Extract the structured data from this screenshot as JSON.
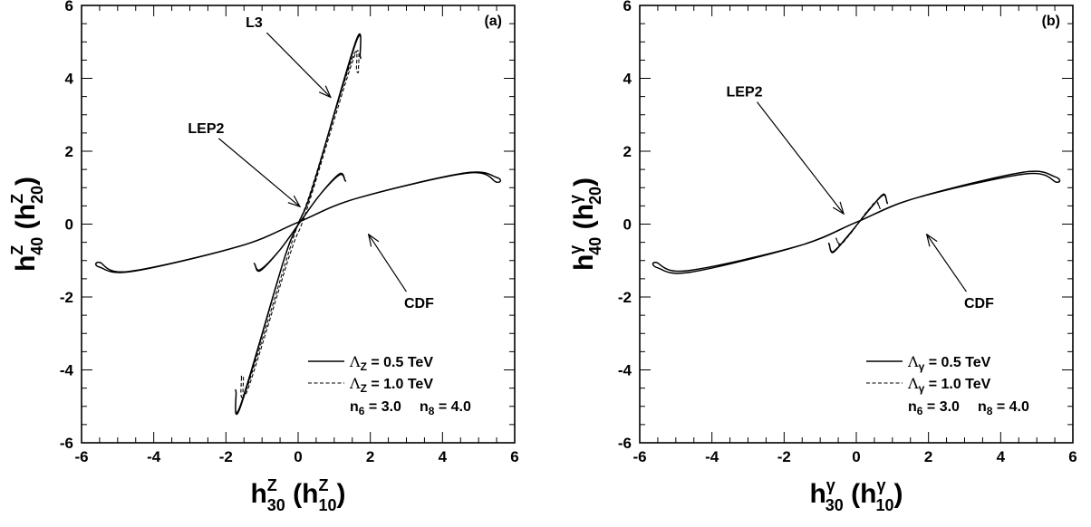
{
  "chart_data": [
    {
      "type": "line",
      "panel_label": "(a)",
      "xlabel": {
        "main": "h",
        "sup": "Z",
        "sub": "30",
        "paren_open": " (h",
        "paren_sup": "Z",
        "paren_sub": "10",
        "paren_close": ")"
      },
      "ylabel": {
        "main": "h",
        "sup": "Z",
        "sub": "40",
        "paren_open": " (h",
        "paren_sup": "Z",
        "paren_sub": "20",
        "paren_close": ")"
      },
      "xlim": [
        -6,
        6
      ],
      "ylim": [
        -6,
        6
      ],
      "xticks": [
        -6,
        -4,
        -2,
        0,
        2,
        4,
        6
      ],
      "yticks": [
        -6,
        -4,
        -2,
        0,
        2,
        4,
        6
      ],
      "xtick_labels": [
        "-6",
        "-4",
        "-2",
        "0",
        "2",
        "4",
        "6"
      ],
      "ytick_labels": [
        "-6",
        "-4",
        "-2",
        "0",
        "2",
        "4",
        "6"
      ],
      "series": [
        {
          "name": "CDF",
          "style": "solid",
          "cx": 0,
          "cy": 0.05,
          "x": [
            -5.5,
            -4.6,
            -1.6,
            0,
            1.6,
            4.7,
            5.5
          ],
          "y": [
            -1.18,
            -1.3,
            -0.6,
            0.05,
            0.7,
            1.4,
            1.15
          ]
        },
        {
          "name": "L3",
          "style": "solid",
          "cx": 0,
          "cy": 0,
          "x": [
            -1.72,
            -1.6,
            -0.4,
            0,
            0.4,
            1.6,
            1.72
          ],
          "y": [
            -4.6,
            -4.98,
            -1.0,
            0,
            1.0,
            5.02,
            4.6
          ]
        },
        {
          "name": "L3",
          "style": "dashed",
          "cx": 0.05,
          "cy": 0,
          "x": [
            -1.57,
            -1.45,
            -0.3,
            0,
            0.35,
            1.5,
            1.62
          ],
          "y": [
            -4.2,
            -4.58,
            -0.9,
            0,
            0.9,
            4.55,
            4.2
          ]
        },
        {
          "name": "LEP2",
          "style": "solid",
          "cx": 0.05,
          "cy": 0.05,
          "x": [
            -1.2,
            -1.05,
            -0.5,
            0.05,
            0.6,
            1.15,
            1.3
          ],
          "y": [
            -1.1,
            -1.28,
            -0.7,
            0.05,
            0.8,
            1.35,
            1.2
          ]
        }
      ],
      "annotations": [
        {
          "text": "L3",
          "tx": -1.22,
          "ty": 5.4,
          "ax": 0.9,
          "ay": 3.48
        },
        {
          "text": "LEP2",
          "tx": -2.55,
          "ty": 2.5,
          "ax": 0.05,
          "ay": 0.48
        },
        {
          "text": "CDF",
          "tx": 3.35,
          "ty": -2.3,
          "ax": 1.95,
          "ay": -0.28
        }
      ],
      "legend": {
        "placement": "bottom-right",
        "entries": [
          {
            "style": "solid",
            "symbol": "Λ",
            "sub": "Z",
            "text": " = 0.5 TeV"
          },
          {
            "style": "dashed",
            "symbol": "Λ",
            "sub": "Z",
            "text": " = 1.0 TeV"
          }
        ],
        "params": [
          {
            "sym": "n",
            "sub": "6",
            "text": " = 3.0"
          },
          {
            "sym": "n",
            "sub": "8",
            "text": " = 4.0"
          }
        ]
      }
    },
    {
      "type": "line",
      "panel_label": "(b)",
      "xlabel": {
        "main": "h",
        "sup": "γ",
        "sub": "30",
        "paren_open": " (h",
        "paren_sup": "γ",
        "paren_sub": "10",
        "paren_close": ")"
      },
      "ylabel": {
        "main": "h",
        "sup": "γ",
        "sub": "40",
        "paren_open": " (h",
        "paren_sup": "γ",
        "paren_sub": "20",
        "paren_close": ")"
      },
      "xlim": [
        -6,
        6
      ],
      "ylim": [
        -6,
        6
      ],
      "xticks": [
        -6,
        -4,
        -2,
        0,
        2,
        4,
        6
      ],
      "yticks": [
        -6,
        -4,
        -2,
        0,
        2,
        4,
        6
      ],
      "xtick_labels": [
        "-6",
        "-4",
        "-2",
        "0",
        "2",
        "4",
        "6"
      ],
      "ytick_labels": [
        "-6",
        "-4",
        "-2",
        "0",
        "2",
        "4",
        "6"
      ],
      "series": [
        {
          "name": "CDF",
          "style": "solid",
          "cx": 0,
          "cy": 0.05,
          "x": [
            -5.5,
            -4.6,
            -1.6,
            0,
            1.6,
            4.7,
            5.55
          ],
          "y": [
            -1.2,
            -1.32,
            -0.6,
            0.05,
            0.7,
            1.38,
            1.15
          ]
        },
        {
          "name": "LEP2",
          "style": "solid",
          "cx": 0.05,
          "cy": 0.02,
          "x": [
            -0.75,
            -0.65,
            -0.3,
            0.05,
            0.4,
            0.75,
            0.85
          ],
          "y": [
            -0.55,
            -0.78,
            -0.4,
            0.02,
            0.45,
            0.8,
            0.6
          ]
        },
        {
          "name": "LEP2",
          "style": "dashed",
          "cx": 0.05,
          "cy": 0.02,
          "x": [
            -0.55,
            -0.45,
            -0.2,
            0.05,
            0.3,
            0.55,
            0.65
          ],
          "y": [
            -0.4,
            -0.58,
            -0.3,
            0.02,
            0.35,
            0.58,
            0.45
          ]
        }
      ],
      "annotations": [
        {
          "text": "LEP2",
          "tx": -3.1,
          "ty": 3.5,
          "ax": -0.35,
          "ay": 0.28
        },
        {
          "text": "CDF",
          "tx": 3.4,
          "ty": -2.3,
          "ax": 1.95,
          "ay": -0.28
        }
      ],
      "legend": {
        "placement": "bottom-right",
        "entries": [
          {
            "style": "solid",
            "symbol": "Λ",
            "sub": "γ",
            "text": " = 0.5 TeV"
          },
          {
            "style": "dashed",
            "symbol": "Λ",
            "sub": "γ",
            "text": " = 1.0 TeV"
          }
        ],
        "params": [
          {
            "sym": "n",
            "sub": "6",
            "text": " = 3.0"
          },
          {
            "sym": "n",
            "sub": "8",
            "text": " = 4.0"
          }
        ]
      }
    }
  ]
}
